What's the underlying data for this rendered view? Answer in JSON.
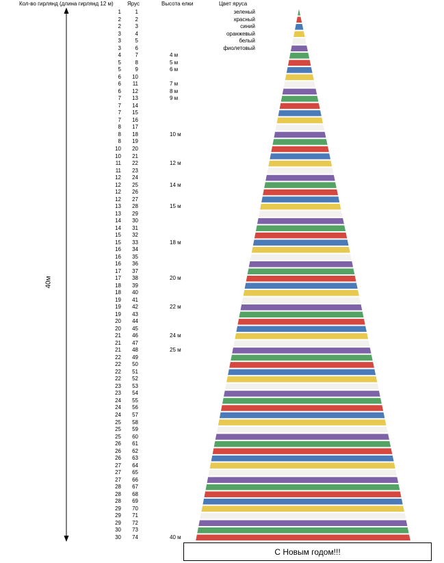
{
  "header": {
    "col_count": "Кол-во гирлянд (длина гирлянд 12 м)",
    "col_tier": "Ярус",
    "col_height": "Высота елки",
    "col_color": "Цвет яруса"
  },
  "measure": {
    "label": "40м"
  },
  "banner": {
    "text": "С Новым годом!!!"
  },
  "legend": {
    "colors": [
      {
        "label": "зеленый",
        "hex": "#55a364"
      },
      {
        "label": "красный",
        "hex": "#d4483f"
      },
      {
        "label": "синий",
        "hex": "#4a7ab8"
      },
      {
        "label": "оранжевый",
        "hex": "#e8c94f"
      },
      {
        "label": "белый",
        "hex": "#f3f1ee"
      },
      {
        "label": "фиолетовый",
        "hex": "#7d62a8"
      }
    ]
  },
  "rows": [
    {
      "count": "1",
      "tier": "1",
      "height": ""
    },
    {
      "count": "2",
      "tier": "2",
      "height": ""
    },
    {
      "count": "2",
      "tier": "3",
      "height": ""
    },
    {
      "count": "3",
      "tier": "4",
      "height": ""
    },
    {
      "count": "3",
      "tier": "5",
      "height": ""
    },
    {
      "count": "3",
      "tier": "6",
      "height": ""
    },
    {
      "count": "4",
      "tier": "7",
      "height": "4 м"
    },
    {
      "count": "5",
      "tier": "8",
      "height": "5 м"
    },
    {
      "count": "5",
      "tier": "9",
      "height": "6 м"
    },
    {
      "count": "6",
      "tier": "10",
      "height": ""
    },
    {
      "count": "6",
      "tier": "11",
      "height": "7 м"
    },
    {
      "count": "6",
      "tier": "12",
      "height": "8 м"
    },
    {
      "count": "7",
      "tier": "13",
      "height": "9 м"
    },
    {
      "count": "7",
      "tier": "14",
      "height": ""
    },
    {
      "count": "7",
      "tier": "15",
      "height": ""
    },
    {
      "count": "7",
      "tier": "16",
      "height": ""
    },
    {
      "count": "8",
      "tier": "17",
      "height": ""
    },
    {
      "count": "8",
      "tier": "18",
      "height": "10 м"
    },
    {
      "count": "8",
      "tier": "19",
      "height": ""
    },
    {
      "count": "10",
      "tier": "20",
      "height": ""
    },
    {
      "count": "10",
      "tier": "21",
      "height": ""
    },
    {
      "count": "11",
      "tier": "22",
      "height": "12 м"
    },
    {
      "count": "11",
      "tier": "23",
      "height": ""
    },
    {
      "count": "12",
      "tier": "24",
      "height": ""
    },
    {
      "count": "12",
      "tier": "25",
      "height": "14 м"
    },
    {
      "count": "12",
      "tier": "26",
      "height": ""
    },
    {
      "count": "12",
      "tier": "27",
      "height": ""
    },
    {
      "count": "13",
      "tier": "28",
      "height": "15 м"
    },
    {
      "count": "13",
      "tier": "29",
      "height": ""
    },
    {
      "count": "14",
      "tier": "30",
      "height": ""
    },
    {
      "count": "14",
      "tier": "31",
      "height": ""
    },
    {
      "count": "15",
      "tier": "32",
      "height": ""
    },
    {
      "count": "15",
      "tier": "33",
      "height": "18 м"
    },
    {
      "count": "16",
      "tier": "34",
      "height": ""
    },
    {
      "count": "16",
      "tier": "35",
      "height": ""
    },
    {
      "count": "16",
      "tier": "36",
      "height": ""
    },
    {
      "count": "17",
      "tier": "37",
      "height": ""
    },
    {
      "count": "17",
      "tier": "38",
      "height": "20 м"
    },
    {
      "count": "18",
      "tier": "39",
      "height": ""
    },
    {
      "count": "18",
      "tier": "40",
      "height": ""
    },
    {
      "count": "19",
      "tier": "41",
      "height": ""
    },
    {
      "count": "19",
      "tier": "42",
      "height": "22 м"
    },
    {
      "count": "19",
      "tier": "43",
      "height": ""
    },
    {
      "count": "20",
      "tier": "44",
      "height": ""
    },
    {
      "count": "20",
      "tier": "45",
      "height": ""
    },
    {
      "count": "21",
      "tier": "46",
      "height": "24 м"
    },
    {
      "count": "21",
      "tier": "47",
      "height": ""
    },
    {
      "count": "21",
      "tier": "48",
      "height": "25 м"
    },
    {
      "count": "22",
      "tier": "49",
      "height": ""
    },
    {
      "count": "22",
      "tier": "50",
      "height": ""
    },
    {
      "count": "22",
      "tier": "51",
      "height": ""
    },
    {
      "count": "22",
      "tier": "52",
      "height": ""
    },
    {
      "count": "23",
      "tier": "53",
      "height": ""
    },
    {
      "count": "23",
      "tier": "54",
      "height": ""
    },
    {
      "count": "24",
      "tier": "55",
      "height": ""
    },
    {
      "count": "24",
      "tier": "56",
      "height": ""
    },
    {
      "count": "24",
      "tier": "57",
      "height": ""
    },
    {
      "count": "25",
      "tier": "58",
      "height": ""
    },
    {
      "count": "25",
      "tier": "59",
      "height": ""
    },
    {
      "count": "25",
      "tier": "60",
      "height": ""
    },
    {
      "count": "26",
      "tier": "61",
      "height": ""
    },
    {
      "count": "26",
      "tier": "62",
      "height": ""
    },
    {
      "count": "26",
      "tier": "63",
      "height": ""
    },
    {
      "count": "27",
      "tier": "64",
      "height": ""
    },
    {
      "count": "27",
      "tier": "65",
      "height": ""
    },
    {
      "count": "27",
      "tier": "66",
      "height": ""
    },
    {
      "count": "28",
      "tier": "67",
      "height": ""
    },
    {
      "count": "28",
      "tier": "68",
      "height": ""
    },
    {
      "count": "28",
      "tier": "69",
      "height": ""
    },
    {
      "count": "29",
      "tier": "70",
      "height": ""
    },
    {
      "count": "29",
      "tier": "71",
      "height": ""
    },
    {
      "count": "29",
      "tier": "72",
      "height": ""
    },
    {
      "count": "30",
      "tier": "73",
      "height": ""
    },
    {
      "count": "30",
      "tier": "74",
      "height": "40 м"
    }
  ]
}
